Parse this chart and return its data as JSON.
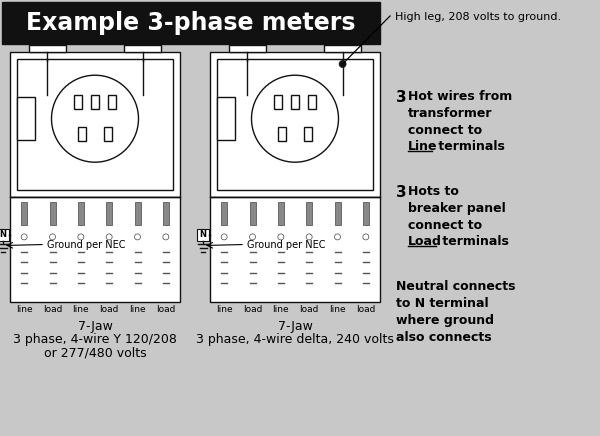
{
  "bg_color": "#c8c8c8",
  "title": "Example 3-phase meters",
  "title_bg": "#111111",
  "title_color": "#ffffff",
  "meter1_label_line1": "7-Jaw",
  "meter1_label_line2": "3 phase, 4-wire Y 120/208",
  "meter1_label_line3": "or 277/480 volts",
  "meter2_label_line1": "7-Jaw",
  "meter2_label_line2": "3 phase, 4-wire delta, 240 volts",
  "high_leg_text": "High leg, 208 volts to ground.",
  "ground_text": "Ground per NEC",
  "meter_bg": "#ffffff",
  "outline_color": "#111111"
}
